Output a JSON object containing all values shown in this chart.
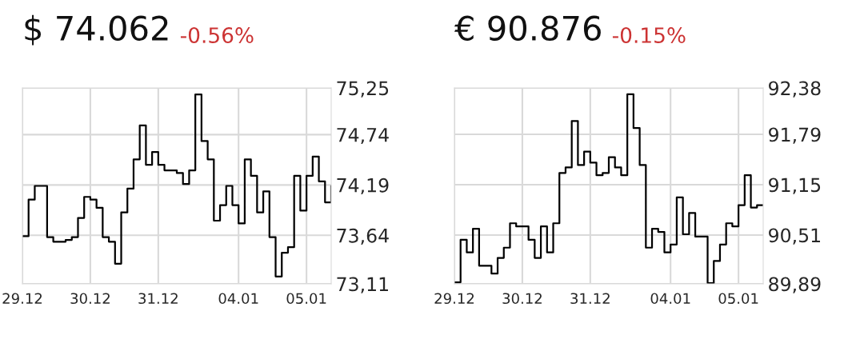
{
  "chart_data": [
    {
      "type": "step",
      "title": "$ 74.062",
      "subtitle": "-0.56%",
      "grid": true,
      "ylim": [
        73.11,
        75.25
      ],
      "categories": [
        "29.12",
        null,
        null,
        null,
        null,
        null,
        null,
        null,
        null,
        null,
        null,
        "30.12",
        null,
        null,
        null,
        null,
        null,
        null,
        null,
        null,
        null,
        null,
        "31.12",
        null,
        null,
        null,
        null,
        null,
        null,
        null,
        null,
        null,
        null,
        null,
        null,
        "04.01",
        null,
        null,
        null,
        null,
        null,
        null,
        null,
        null,
        null,
        null,
        "05.01",
        null,
        null,
        null,
        null
      ],
      "yticks": [
        {
          "value": 73.11,
          "label": "73,11"
        },
        {
          "value": 73.64,
          "label": "73,64"
        },
        {
          "value": 74.19,
          "label": "74,19"
        },
        {
          "value": 74.74,
          "label": "74,74"
        },
        {
          "value": 75.25,
          "label": "75,25"
        }
      ],
      "series": [
        {
          "color": "#000000",
          "values": [
            73.63,
            74.03,
            74.18,
            74.18,
            73.62,
            73.57,
            73.57,
            73.59,
            73.62,
            73.83,
            74.06,
            74.03,
            73.94,
            73.62,
            73.57,
            73.33,
            73.89,
            74.15,
            74.47,
            74.84,
            74.41,
            74.55,
            74.41,
            74.35,
            74.35,
            74.32,
            74.2,
            74.35,
            75.18,
            74.67,
            74.47,
            73.8,
            73.97,
            74.18,
            73.97,
            73.77,
            74.47,
            74.29,
            73.89,
            74.12,
            73.62,
            73.19,
            73.45,
            73.51,
            74.29,
            73.91,
            74.29,
            74.5,
            74.23,
            74.0,
            74.18
          ]
        }
      ]
    },
    {
      "type": "step",
      "title": "€ 90.876",
      "subtitle": "-0.15%",
      "grid": true,
      "ylim": [
        89.89,
        92.38
      ],
      "categories": [
        "29.12",
        null,
        null,
        null,
        null,
        null,
        null,
        null,
        null,
        null,
        null,
        "30.12",
        null,
        null,
        null,
        null,
        null,
        null,
        null,
        null,
        null,
        null,
        "31.12",
        null,
        null,
        null,
        null,
        null,
        null,
        null,
        null,
        null,
        null,
        null,
        null,
        "04.01",
        null,
        null,
        null,
        null,
        null,
        null,
        null,
        null,
        null,
        null,
        "05.01",
        null,
        null,
        null,
        null
      ],
      "yticks": [
        {
          "value": 89.89,
          "label": "89,89"
        },
        {
          "value": 90.51,
          "label": "90,51"
        },
        {
          "value": 91.15,
          "label": "91,15"
        },
        {
          "value": 91.79,
          "label": "91,79"
        },
        {
          "value": 92.38,
          "label": "92,38"
        }
      ],
      "series": [
        {
          "color": "#000000",
          "values": [
            89.91,
            90.45,
            90.29,
            90.59,
            90.12,
            90.12,
            90.02,
            90.22,
            90.35,
            90.66,
            90.62,
            90.62,
            90.45,
            90.22,
            90.62,
            90.29,
            90.66,
            91.3,
            91.37,
            91.96,
            91.4,
            91.57,
            91.43,
            91.27,
            91.3,
            91.5,
            91.37,
            91.27,
            92.3,
            91.87,
            91.4,
            90.35,
            90.59,
            90.55,
            90.29,
            90.39,
            90.99,
            90.52,
            90.79,
            90.49,
            90.49,
            89.9,
            90.18,
            90.39,
            90.66,
            90.62,
            90.89,
            91.27,
            90.86,
            90.89,
            90.89
          ]
        }
      ]
    }
  ]
}
